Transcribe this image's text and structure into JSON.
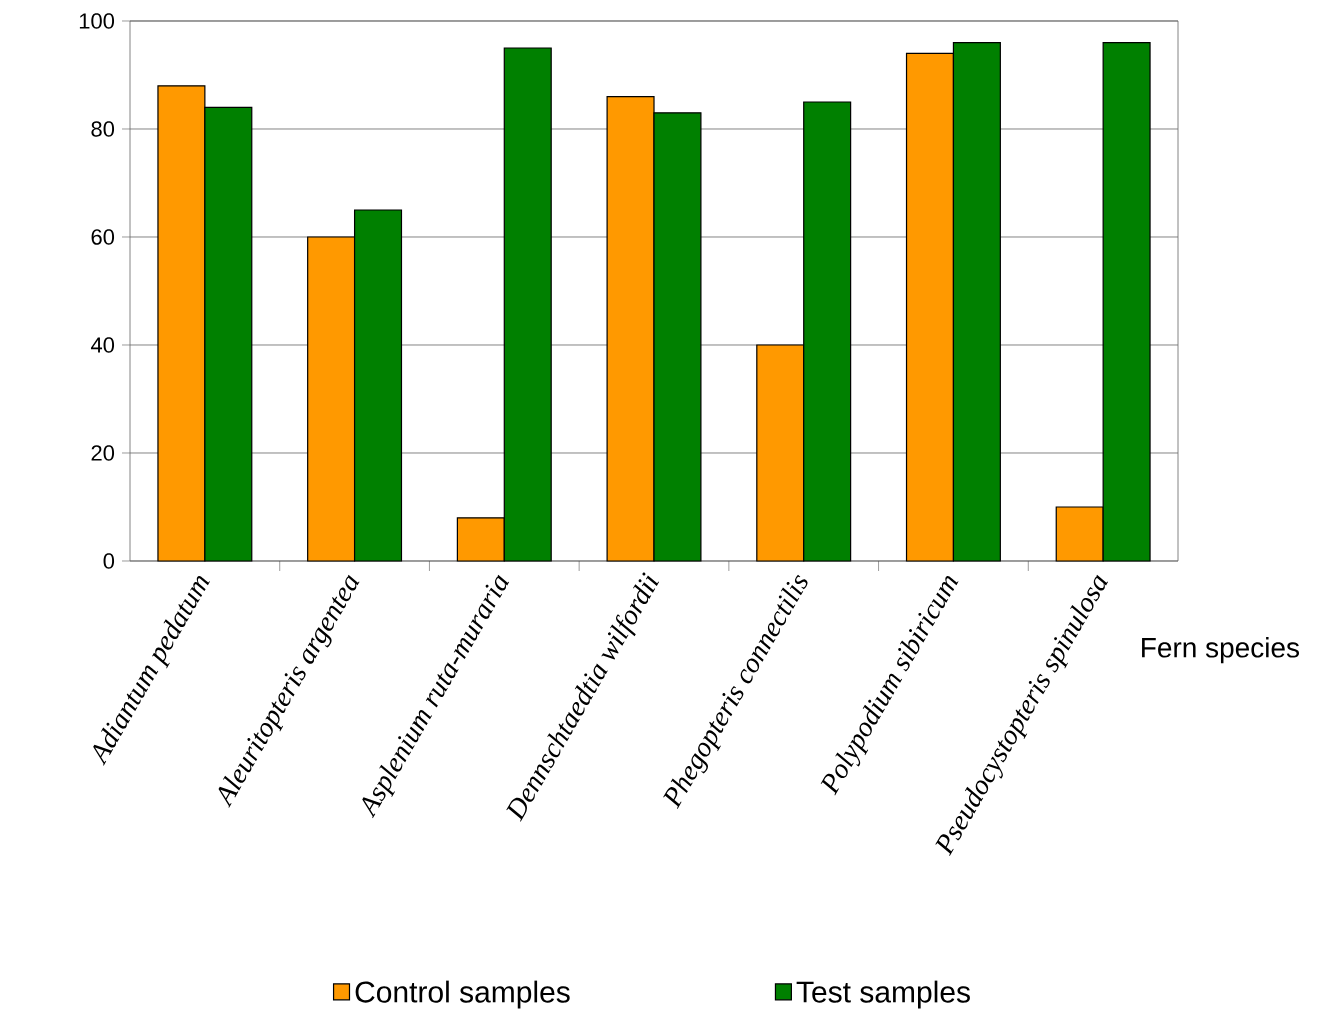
{
  "chart_data": {
    "type": "bar",
    "xlabel": "Fern species",
    "categories": [
      "Adiantum pedatum",
      "Aleuritopteris argentea",
      "Asplenium ruta-muraria",
      "Dennschtaedtia wilfordii",
      "Phegopteris connectilis",
      "Polypodium sibiricum",
      "Pseudocystopteris spinulosa"
    ],
    "series": [
      {
        "name": "Control samples",
        "color": "#ff9900",
        "values": [
          88,
          60,
          8,
          86,
          40,
          94,
          10
        ]
      },
      {
        "name": "Test samples",
        "color": "#008000",
        "values": [
          84,
          65,
          95,
          83,
          85,
          96,
          96
        ]
      }
    ],
    "ylim": [
      0,
      100
    ],
    "yticks": [
      0,
      20,
      40,
      60,
      80,
      100
    ],
    "grid": "y",
    "legend": "bottom"
  }
}
